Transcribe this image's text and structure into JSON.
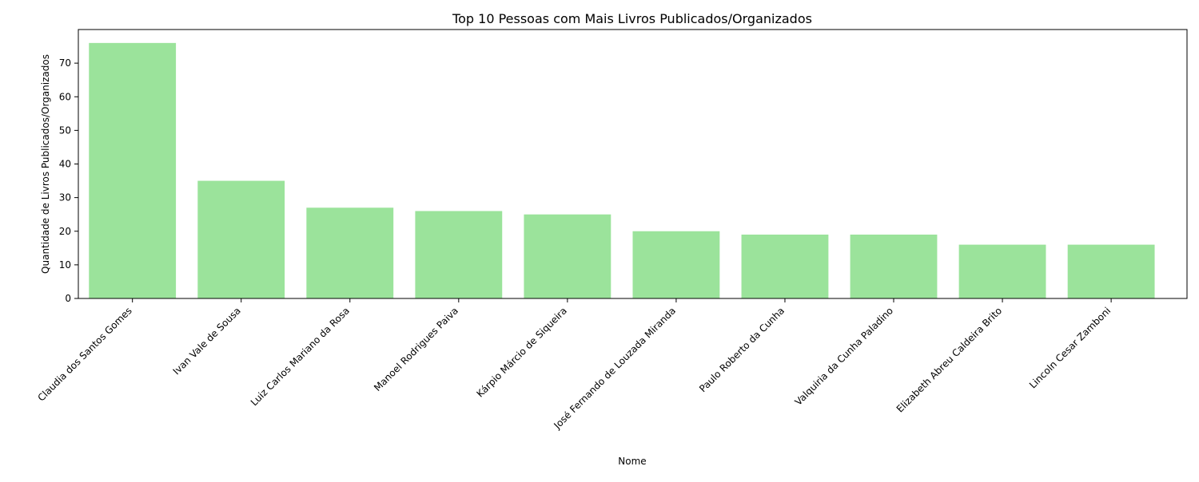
{
  "chart_data": {
    "type": "bar",
    "title": "Top 10 Pessoas com Mais Livros Publicados/Organizados",
    "xlabel": "Nome",
    "ylabel": "Quantidade de Livros Publicados/Organizados",
    "categories": [
      "Claudia dos Santos Gomes",
      "Ivan Vale de Sousa",
      "Luiz Carlos Mariano da Rosa",
      "Manoel Rodrigues Paiva",
      "Kárpio Márcio de Siqueira",
      "José Fernando de Louzada Miranda",
      "Paulo Roberto da Cunha",
      "Valquiria da Cunha Paladino",
      "Elizabeth Abreu Caldeira Brito",
      "Lincoln Cesar Zamboni"
    ],
    "values": [
      76,
      35,
      27,
      26,
      25,
      20,
      19,
      19,
      16,
      16
    ],
    "ylim": [
      0,
      80
    ],
    "yticks": [
      "0",
      "10",
      "20",
      "30",
      "40",
      "50",
      "60",
      "70"
    ],
    "grid": false,
    "legend": "none",
    "bar_color": "#9be39b"
  }
}
